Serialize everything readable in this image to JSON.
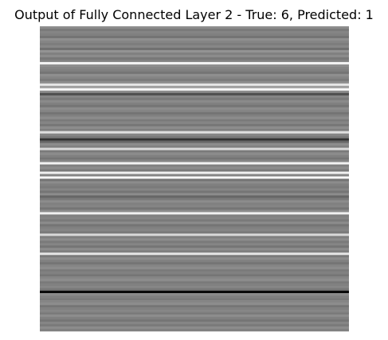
{
  "chart_data": {
    "type": "heatmap",
    "title": "Output of Fully Connected Layer 2 - True: 6, Predicted: 1",
    "xlabel": "",
    "ylabel": "",
    "grid": false,
    "axes_visible": false,
    "colormap": "gray",
    "rows": 128,
    "values": [
      0.55,
      0.48,
      0.52,
      0.5,
      0.45,
      0.56,
      0.52,
      0.49,
      0.53,
      0.44,
      0.58,
      0.5,
      0.55,
      0.47,
      0.51,
      0.96,
      0.56,
      0.52,
      0.5,
      0.46,
      0.56,
      0.52,
      0.48,
      0.55,
      0.9,
      0.62,
      0.97,
      0.55,
      0.3,
      0.52,
      0.48,
      0.54,
      0.5,
      0.46,
      0.55,
      0.52,
      0.45,
      0.5,
      0.55,
      0.48,
      0.52,
      0.46,
      0.55,
      0.5,
      0.88,
      0.52,
      0.48,
      0.2,
      0.4,
      0.55,
      0.5,
      0.85,
      0.48,
      0.55,
      0.5,
      0.46,
      0.52,
      0.95,
      0.5,
      0.55,
      0.48,
      0.94,
      0.52,
      0.97,
      0.45,
      0.55,
      0.5,
      0.48,
      0.52,
      0.46,
      0.55,
      0.4,
      0.48,
      0.55,
      0.5,
      0.52,
      0.46,
      0.55,
      0.94,
      0.5,
      0.52,
      0.48,
      0.55,
      0.46,
      0.5,
      0.52,
      0.48,
      0.85,
      0.5,
      0.55,
      0.48,
      0.52,
      0.46,
      0.55,
      0.5,
      0.9,
      0.48,
      0.55,
      0.5,
      0.46,
      0.52,
      0.55,
      0.48,
      0.5,
      0.46,
      0.52,
      0.55,
      0.48,
      0.5,
      0.52,
      0.46,
      0.02,
      0.55,
      0.5,
      0.48,
      0.52,
      0.55,
      0.46,
      0.5,
      0.52,
      0.48,
      0.55,
      0.5,
      0.46,
      0.52,
      0.48,
      0.55,
      0.5
    ]
  }
}
